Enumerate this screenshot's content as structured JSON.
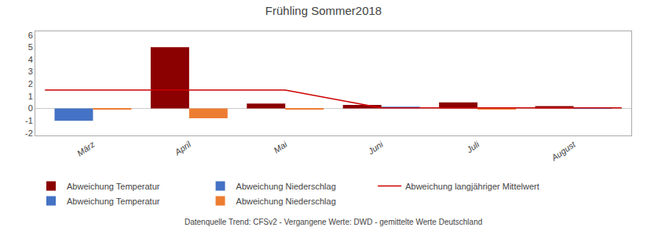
{
  "chart_data": {
    "type": "bar",
    "title": "Frühling Sommer2018",
    "categories": [
      "März",
      "April",
      "Mai",
      "Juni",
      "Juli",
      "August"
    ],
    "series": [
      {
        "name": "Abweichung Temperatur",
        "color": "#8B0000",
        "values": [
          null,
          5.0,
          0.4,
          0.3,
          0.5,
          0.2
        ]
      },
      {
        "name": "Abweichung Niederschlag",
        "color": "#4472C4",
        "values": [
          null,
          null,
          null,
          0.15,
          null,
          0.07
        ]
      },
      {
        "name": "Abweichung langjähriger Mittelwert",
        "color": "#CC0000",
        "type": "line",
        "x": [
          -0.5,
          2.0,
          3.0,
          5.5
        ],
        "values": [
          1.5,
          1.5,
          0.05,
          0.05
        ]
      },
      {
        "name": "Abweichung Temperatur",
        "color": "#4472C4",
        "values": [
          -1.0,
          null,
          null,
          null,
          null,
          null
        ]
      },
      {
        "name": "Abweichung Niederschlag",
        "color": "#ED7D31",
        "values": [
          -0.05,
          -0.8,
          -0.07,
          null,
          -0.07,
          null
        ]
      }
    ],
    "xlim": [
      -0.6,
      5.6
    ],
    "ylim": [
      -2.2,
      6.3
    ],
    "yticks": [
      -2,
      -1,
      0,
      1,
      2,
      3,
      4,
      5,
      6
    ],
    "grid": false,
    "legend": "bottom",
    "annotations": [
      "Datenquelle Trend: CFSv2 - Vergangene Werte: DWD - gemittelte Werte Deutschland"
    ]
  }
}
